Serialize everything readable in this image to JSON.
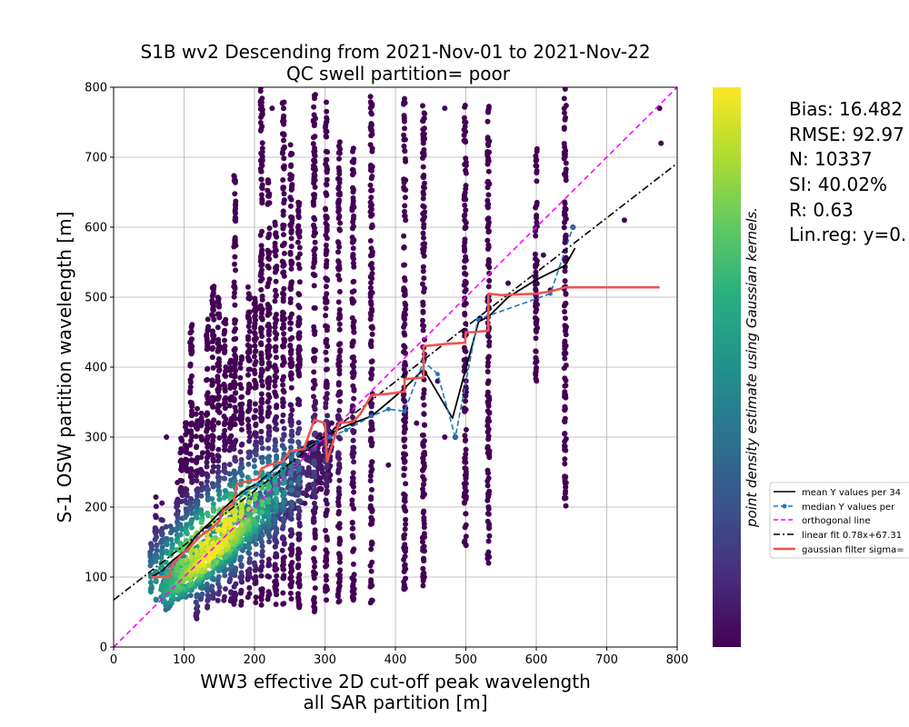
{
  "chart_data": {
    "type": "scatter",
    "title": [
      "S1B wv2 Descending from 2021-Nov-01 to 2021-Nov-22",
      "QC swell partition= poor"
    ],
    "xlabel": [
      "WW3 effective 2D cut-off peak wavelength",
      "all SAR partition [m]"
    ],
    "ylabel": "S-1 OSW partition wavelength [m]",
    "xlim": [
      0,
      800
    ],
    "ylim": [
      0,
      800
    ],
    "xticks": [
      0,
      100,
      200,
      300,
      400,
      500,
      600,
      700,
      800
    ],
    "yticks": [
      0,
      100,
      200,
      300,
      400,
      500,
      600,
      700,
      800
    ],
    "grid": true,
    "colorbar_label": "point density estimate using Gaussian kernels.",
    "colormap": [
      "#440154",
      "#472d7b",
      "#3b528b",
      "#2c728e",
      "#21918c",
      "#28ae80",
      "#5ec962",
      "#addc30",
      "#fde725"
    ],
    "stats": [
      "Bias: 16.482",
      "RMSE: 92.97",
      "N: 10337",
      "SI: 40.02%",
      "R: 0.63",
      "Lin.reg: y=0."
    ],
    "legend": {
      "placement": "right",
      "entries": [
        {
          "label": "mean Y values per 34",
          "color": "#000000",
          "style": "solid"
        },
        {
          "label": "median Y values per",
          "color": "#1f77b4",
          "style": "dashed-marker"
        },
        {
          "label": "orthogonal line",
          "color": "#ff00ff",
          "style": "dashed"
        },
        {
          "label": "linear fit 0.78x+67.31",
          "color": "#000000",
          "style": "dashdot"
        },
        {
          "label": "gaussian filter sigma=",
          "color": "#ef5350",
          "style": "thick"
        }
      ]
    },
    "columns": [
      {
        "x": 53,
        "ymin": 70,
        "ymax": 150
      },
      {
        "x": 60,
        "ymin": 65,
        "ymax": 215
      },
      {
        "x": 68,
        "ymin": 70,
        "ymax": 210
      },
      {
        "x": 75,
        "ymin": 70,
        "ymax": 180
      },
      {
        "x": 82,
        "ymin": 75,
        "ymax": 175
      },
      {
        "x": 90,
        "ymin": 70,
        "ymax": 240
      },
      {
        "x": 96,
        "ymin": 75,
        "ymax": 300
      },
      {
        "x": 103,
        "ymin": 70,
        "ymax": 330
      },
      {
        "x": 110,
        "ymin": 70,
        "ymax": 465
      },
      {
        "x": 118,
        "ymin": 40,
        "ymax": 350
      },
      {
        "x": 125,
        "ymin": 65,
        "ymax": 340
      },
      {
        "x": 133,
        "ymin": 55,
        "ymax": 470
      },
      {
        "x": 141,
        "ymin": 60,
        "ymax": 530
      },
      {
        "x": 149,
        "ymin": 60,
        "ymax": 500
      },
      {
        "x": 158,
        "ymin": 65,
        "ymax": 470
      },
      {
        "x": 166,
        "ymin": 55,
        "ymax": 420
      },
      {
        "x": 172,
        "ymin": 60,
        "ymax": 680
      },
      {
        "x": 181,
        "ymin": 60,
        "ymax": 420
      },
      {
        "x": 192,
        "ymin": 70,
        "ymax": 520
      },
      {
        "x": 201,
        "ymin": 60,
        "ymax": 500
      },
      {
        "x": 210,
        "ymin": 55,
        "ymax": 800
      },
      {
        "x": 220,
        "ymin": 60,
        "ymax": 680
      },
      {
        "x": 230,
        "ymin": 60,
        "ymax": 620
      },
      {
        "x": 241,
        "ymin": 60,
        "ymax": 780
      },
      {
        "x": 252,
        "ymin": 60,
        "ymax": 720
      },
      {
        "x": 263,
        "ymin": 55,
        "ymax": 640
      },
      {
        "x": 285,
        "ymin": 50,
        "ymax": 790
      },
      {
        "x": 302,
        "ymin": 60,
        "ymax": 780
      },
      {
        "x": 320,
        "ymin": 60,
        "ymax": 730
      },
      {
        "x": 340,
        "ymin": 60,
        "ymax": 720
      },
      {
        "x": 366,
        "ymin": 60,
        "ymax": 790
      },
      {
        "x": 413,
        "ymin": 80,
        "ymax": 790
      },
      {
        "x": 440,
        "ymin": 80,
        "ymax": 780
      },
      {
        "x": 499,
        "ymin": 140,
        "ymax": 780
      },
      {
        "x": 532,
        "ymin": 110,
        "ymax": 780
      },
      {
        "x": 600,
        "ymin": 380,
        "ymax": 730
      },
      {
        "x": 641,
        "ymin": 200,
        "ymax": 800
      }
    ],
    "outliers": [
      {
        "x": 75,
        "y": 300
      },
      {
        "x": 225,
        "y": 770
      },
      {
        "x": 460,
        "y": 380
      },
      {
        "x": 470,
        "y": 770
      },
      {
        "x": 485,
        "y": 300
      },
      {
        "x": 520,
        "y": 470
      },
      {
        "x": 560,
        "y": 520
      },
      {
        "x": 610,
        "y": 560
      },
      {
        "x": 620,
        "y": 510
      },
      {
        "x": 652,
        "y": 600
      },
      {
        "x": 725,
        "y": 610
      },
      {
        "x": 775,
        "y": 770
      },
      {
        "x": 777,
        "y": 720
      },
      {
        "x": 390,
        "y": 260
      },
      {
        "x": 430,
        "y": 320
      },
      {
        "x": 470,
        "y": 300
      }
    ],
    "series": [
      {
        "name": "mean Y values per 34",
        "x": [
          53,
          68,
          85,
          100,
          118,
          136,
          153,
          170,
          187,
          204,
          221,
          238,
          255,
          272,
          290,
          307,
          330,
          366,
          390,
          413,
          440,
          481,
          518,
          532,
          560,
          600,
          620,
          641,
          655
        ],
        "y": [
          100,
          108,
          125,
          136,
          160,
          177,
          195,
          211,
          225,
          234,
          248,
          263,
          278,
          286,
          296,
          305,
          316,
          330,
          350,
          370,
          397,
          327,
          465,
          472,
          500,
          525,
          535,
          545,
          570
        ]
      },
      {
        "name": "median Y values per",
        "x": [
          68,
          85,
          100,
          118,
          136,
          153,
          170,
          187,
          204,
          221,
          238,
          255,
          272,
          290,
          307,
          330,
          366,
          390,
          413,
          440,
          460,
          485,
          517,
          620,
          652
        ],
        "y": [
          105,
          120,
          130,
          155,
          170,
          190,
          205,
          220,
          232,
          246,
          262,
          278,
          284,
          294,
          300,
          310,
          330,
          340,
          337,
          408,
          390,
          300,
          468,
          505,
          600
        ]
      },
      {
        "name": "orthogonal line",
        "x": [
          0,
          800
        ],
        "y": [
          0,
          800
        ]
      },
      {
        "name": "linear fit 0.78x+67.31",
        "x": [
          0,
          800
        ],
        "y": [
          67.31,
          691.31
        ]
      },
      {
        "name": "gaussian filter sigma=",
        "x": [
          53,
          80,
          80,
          85,
          95,
          110,
          125,
          140,
          150,
          155,
          170,
          175,
          190,
          205,
          210,
          220,
          240,
          250,
          270,
          285,
          300,
          303,
          320,
          340,
          350,
          366,
          390,
          413,
          413,
          440,
          440,
          460,
          470,
          499,
          500,
          510,
          532,
          532,
          550,
          600,
          620,
          641,
          700,
          775
        ],
        "y": [
          100,
          100,
          110,
          120,
          130,
          145,
          160,
          170,
          180,
          195,
          205,
          233,
          237,
          240,
          255,
          260,
          265,
          280,
          283,
          325,
          320,
          265,
          320,
          322,
          333,
          360,
          362,
          365,
          383,
          385,
          430,
          432,
          433,
          435,
          450,
          450,
          452,
          505,
          503,
          505,
          508,
          514,
          514,
          514
        ]
      }
    ]
  }
}
